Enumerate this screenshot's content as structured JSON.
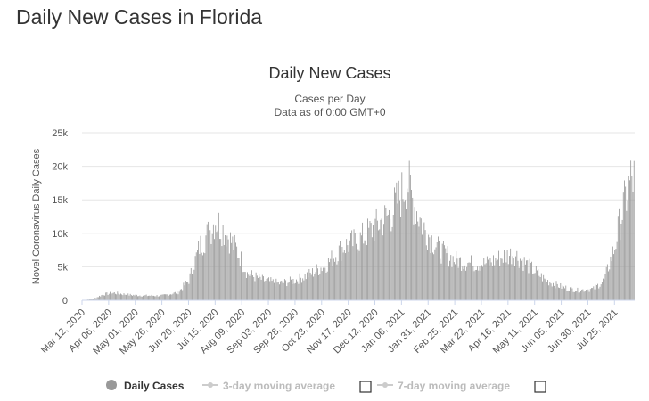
{
  "page": {
    "heading": "Daily New Cases in Florida"
  },
  "chart_data": {
    "type": "bar",
    "title": "Daily New Cases",
    "subtitle": "Cases per Day",
    "subtitle2": "Data as of 0:00 GMT+0",
    "ylabel": "Novel Coronavirus Daily Cases",
    "ylim": [
      0,
      25000
    ],
    "y_ticks": [
      0,
      5000,
      10000,
      15000,
      20000,
      25000
    ],
    "y_tick_labels": [
      "0",
      "5k",
      "10k",
      "15k",
      "20k",
      "25k"
    ],
    "x_tick_labels": [
      "Mar 12, 2020",
      "Apr 06, 2020",
      "May 01, 2020",
      "May 26, 2020",
      "Jun 20, 2020",
      "Jul 15, 2020",
      "Aug 09, 2020",
      "Sep 03, 2020",
      "Sep 28, 2020",
      "Oct 23, 2020",
      "Nov 17, 2020",
      "Dec 12, 2020",
      "Jan 06, 2021",
      "Jan 31, 2021",
      "Feb 25, 2021",
      "Mar 22, 2021",
      "Apr 16, 2021",
      "May 11, 2021",
      "Jun 05, 2021",
      "Jun 30, 2021",
      "Jul 25, 2021"
    ],
    "grid": true,
    "bar_color": "#999999",
    "series": [
      {
        "name": "Daily Cases",
        "keyframes": [
          [
            0,
            0
          ],
          [
            10,
            200
          ],
          [
            20,
            900
          ],
          [
            30,
            1100
          ],
          [
            45,
            800
          ],
          [
            60,
            700
          ],
          [
            75,
            700
          ],
          [
            90,
            1200
          ],
          [
            100,
            3000
          ],
          [
            110,
            8000
          ],
          [
            120,
            10500
          ],
          [
            125,
            12000
          ],
          [
            135,
            10000
          ],
          [
            145,
            7500
          ],
          [
            155,
            4000
          ],
          [
            170,
            3000
          ],
          [
            185,
            2500
          ],
          [
            200,
            3000
          ],
          [
            215,
            4000
          ],
          [
            230,
            5500
          ],
          [
            245,
            8000
          ],
          [
            260,
            9000
          ],
          [
            275,
            11000
          ],
          [
            290,
            13000
          ],
          [
            300,
            16000
          ],
          [
            305,
            18000
          ],
          [
            310,
            15000
          ],
          [
            320,
            11000
          ],
          [
            335,
            7500
          ],
          [
            350,
            6000
          ],
          [
            365,
            5500
          ],
          [
            380,
            5500
          ],
          [
            395,
            6500
          ],
          [
            405,
            7000
          ],
          [
            420,
            5000
          ],
          [
            435,
            3000
          ],
          [
            450,
            2000
          ],
          [
            465,
            1500
          ],
          [
            480,
            1700
          ],
          [
            490,
            3000
          ],
          [
            500,
            8000
          ],
          [
            505,
            12000
          ],
          [
            510,
            15000
          ],
          [
            515,
            18000
          ],
          [
            518,
            18000
          ]
        ],
        "color": "#999999"
      }
    ],
    "legend": {
      "position": "bottom",
      "items": [
        {
          "label": "Daily Cases",
          "color": "#999999",
          "active": true
        },
        {
          "label": "3-day moving average",
          "color": "#cccccc",
          "active": false
        },
        {
          "label": "7-day moving average",
          "color": "#cccccc",
          "active": false
        }
      ]
    }
  }
}
